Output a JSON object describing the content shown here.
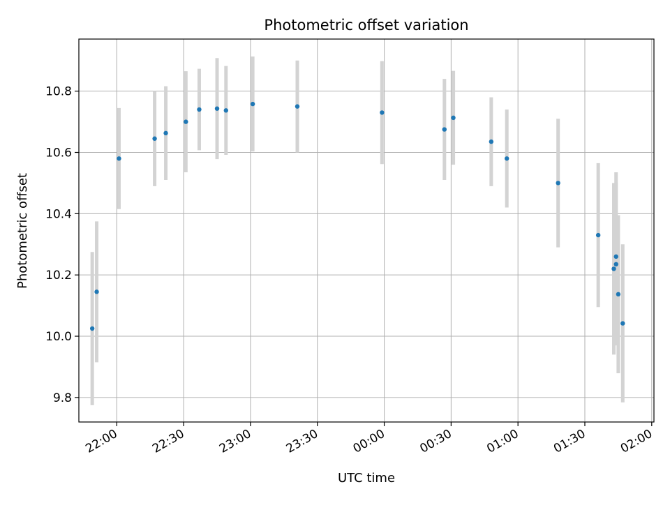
{
  "chart_data": {
    "type": "scatter",
    "title": "Photometric offset variation",
    "xlabel": "UTC time",
    "ylabel": "Photometric offset",
    "x_axis": {
      "type": "time",
      "range": [
        "21:43",
        "02:01"
      ],
      "ticks": [
        "22:00",
        "22:30",
        "23:00",
        "23:30",
        "00:00",
        "00:30",
        "01:00",
        "01:30",
        "02:00"
      ]
    },
    "y_axis": {
      "range": [
        9.72,
        10.97
      ],
      "ticks": [
        "9.8",
        "10.0",
        "10.2",
        "10.4",
        "10.6",
        "10.8"
      ],
      "tick_values": [
        9.8,
        10.0,
        10.2,
        10.4,
        10.6,
        10.8
      ]
    },
    "grid": true,
    "colors": {
      "points": "#1f77b4",
      "errorbars": "#d3d3d3",
      "grid": "#b0b0b0"
    },
    "series": [
      {
        "points": [
          {
            "x": "21:49",
            "y": 10.025,
            "err": 0.25
          },
          {
            "x": "21:51",
            "y": 10.145,
            "err": 0.23
          },
          {
            "x": "22:01",
            "y": 10.58,
            "err": 0.165
          },
          {
            "x": "22:17",
            "y": 10.645,
            "err": 0.155
          },
          {
            "x": "22:22",
            "y": 10.663,
            "err": 0.153
          },
          {
            "x": "22:31",
            "y": 10.7,
            "err": 0.165
          },
          {
            "x": "22:37",
            "y": 10.74,
            "err": 0.133
          },
          {
            "x": "22:45",
            "y": 10.743,
            "err": 0.165
          },
          {
            "x": "22:49",
            "y": 10.737,
            "err": 0.145
          },
          {
            "x": "23:01",
            "y": 10.758,
            "err": 0.155
          },
          {
            "x": "23:21",
            "y": 10.75,
            "err": 0.15
          },
          {
            "x": "23:59",
            "y": 10.73,
            "err": 0.168
          },
          {
            "x": "00:27",
            "y": 10.675,
            "err": 0.165
          },
          {
            "x": "00:31",
            "y": 10.713,
            "err": 0.153
          },
          {
            "x": "00:48",
            "y": 10.635,
            "err": 0.145
          },
          {
            "x": "00:55",
            "y": 10.58,
            "err": 0.16
          },
          {
            "x": "01:18",
            "y": 10.5,
            "err": 0.21
          },
          {
            "x": "01:36",
            "y": 10.33,
            "err": 0.235
          },
          {
            "x": "01:43",
            "y": 10.22,
            "err": 0.28
          },
          {
            "x": "01:44",
            "y": 10.26,
            "err": 0.275
          },
          {
            "x": "01:44",
            "y": 10.235,
            "err": 0.265
          },
          {
            "x": "01:45",
            "y": 10.137,
            "err": 0.258
          },
          {
            "x": "01:47",
            "y": 10.042,
            "err": 0.258
          }
        ]
      }
    ]
  }
}
